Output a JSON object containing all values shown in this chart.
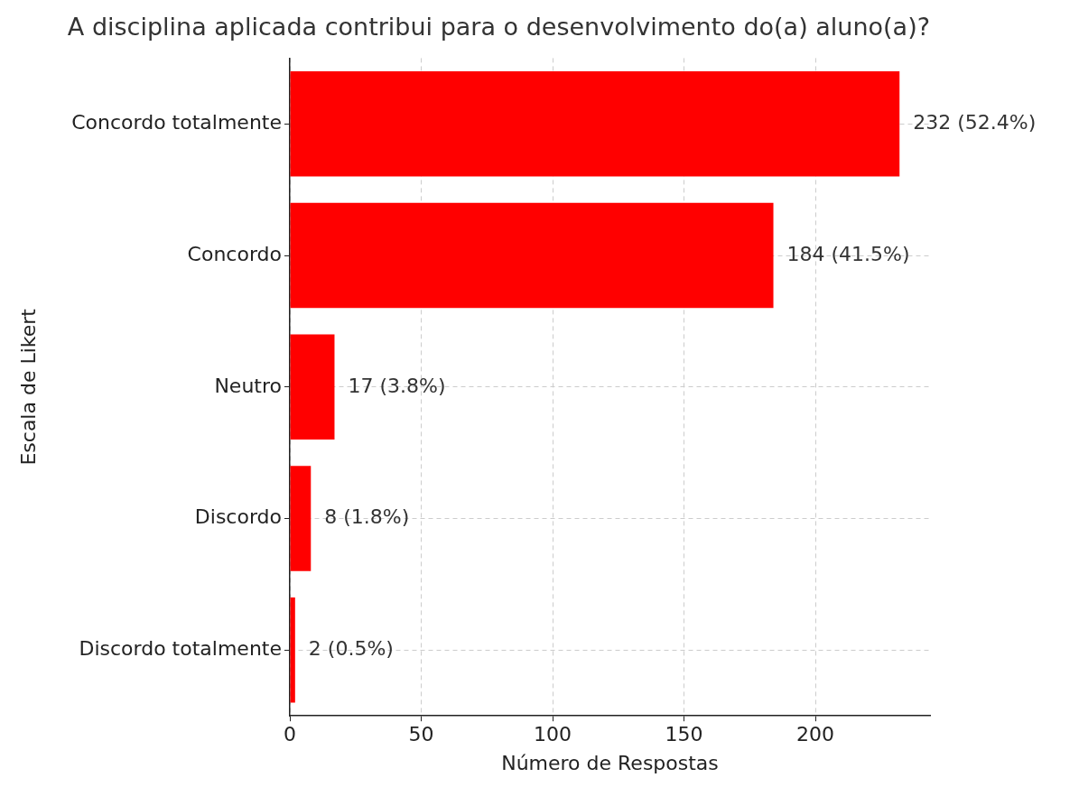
{
  "chart_data": {
    "type": "bar",
    "orientation": "horizontal",
    "title": "A disciplina aplicada contribui para o desenvolvimento do(a) aluno(a)?",
    "xlabel": "Número de Respostas",
    "ylabel": "Escala de Likert",
    "categories": [
      "Concordo totalmente",
      "Concordo",
      "Neutro",
      "Discordo",
      "Discordo totalmente"
    ],
    "values": [
      232,
      184,
      17,
      8,
      2
    ],
    "value_labels": [
      "232 (52.4%)",
      "184 (41.5%)",
      "17 (3.8%)",
      "8 (1.8%)",
      "2 (0.5%)"
    ],
    "color": "#ff0000",
    "xlim": [
      0,
      243.6
    ],
    "xticks": [
      0,
      50,
      100,
      150,
      200
    ],
    "grid": true,
    "legend": false
  }
}
